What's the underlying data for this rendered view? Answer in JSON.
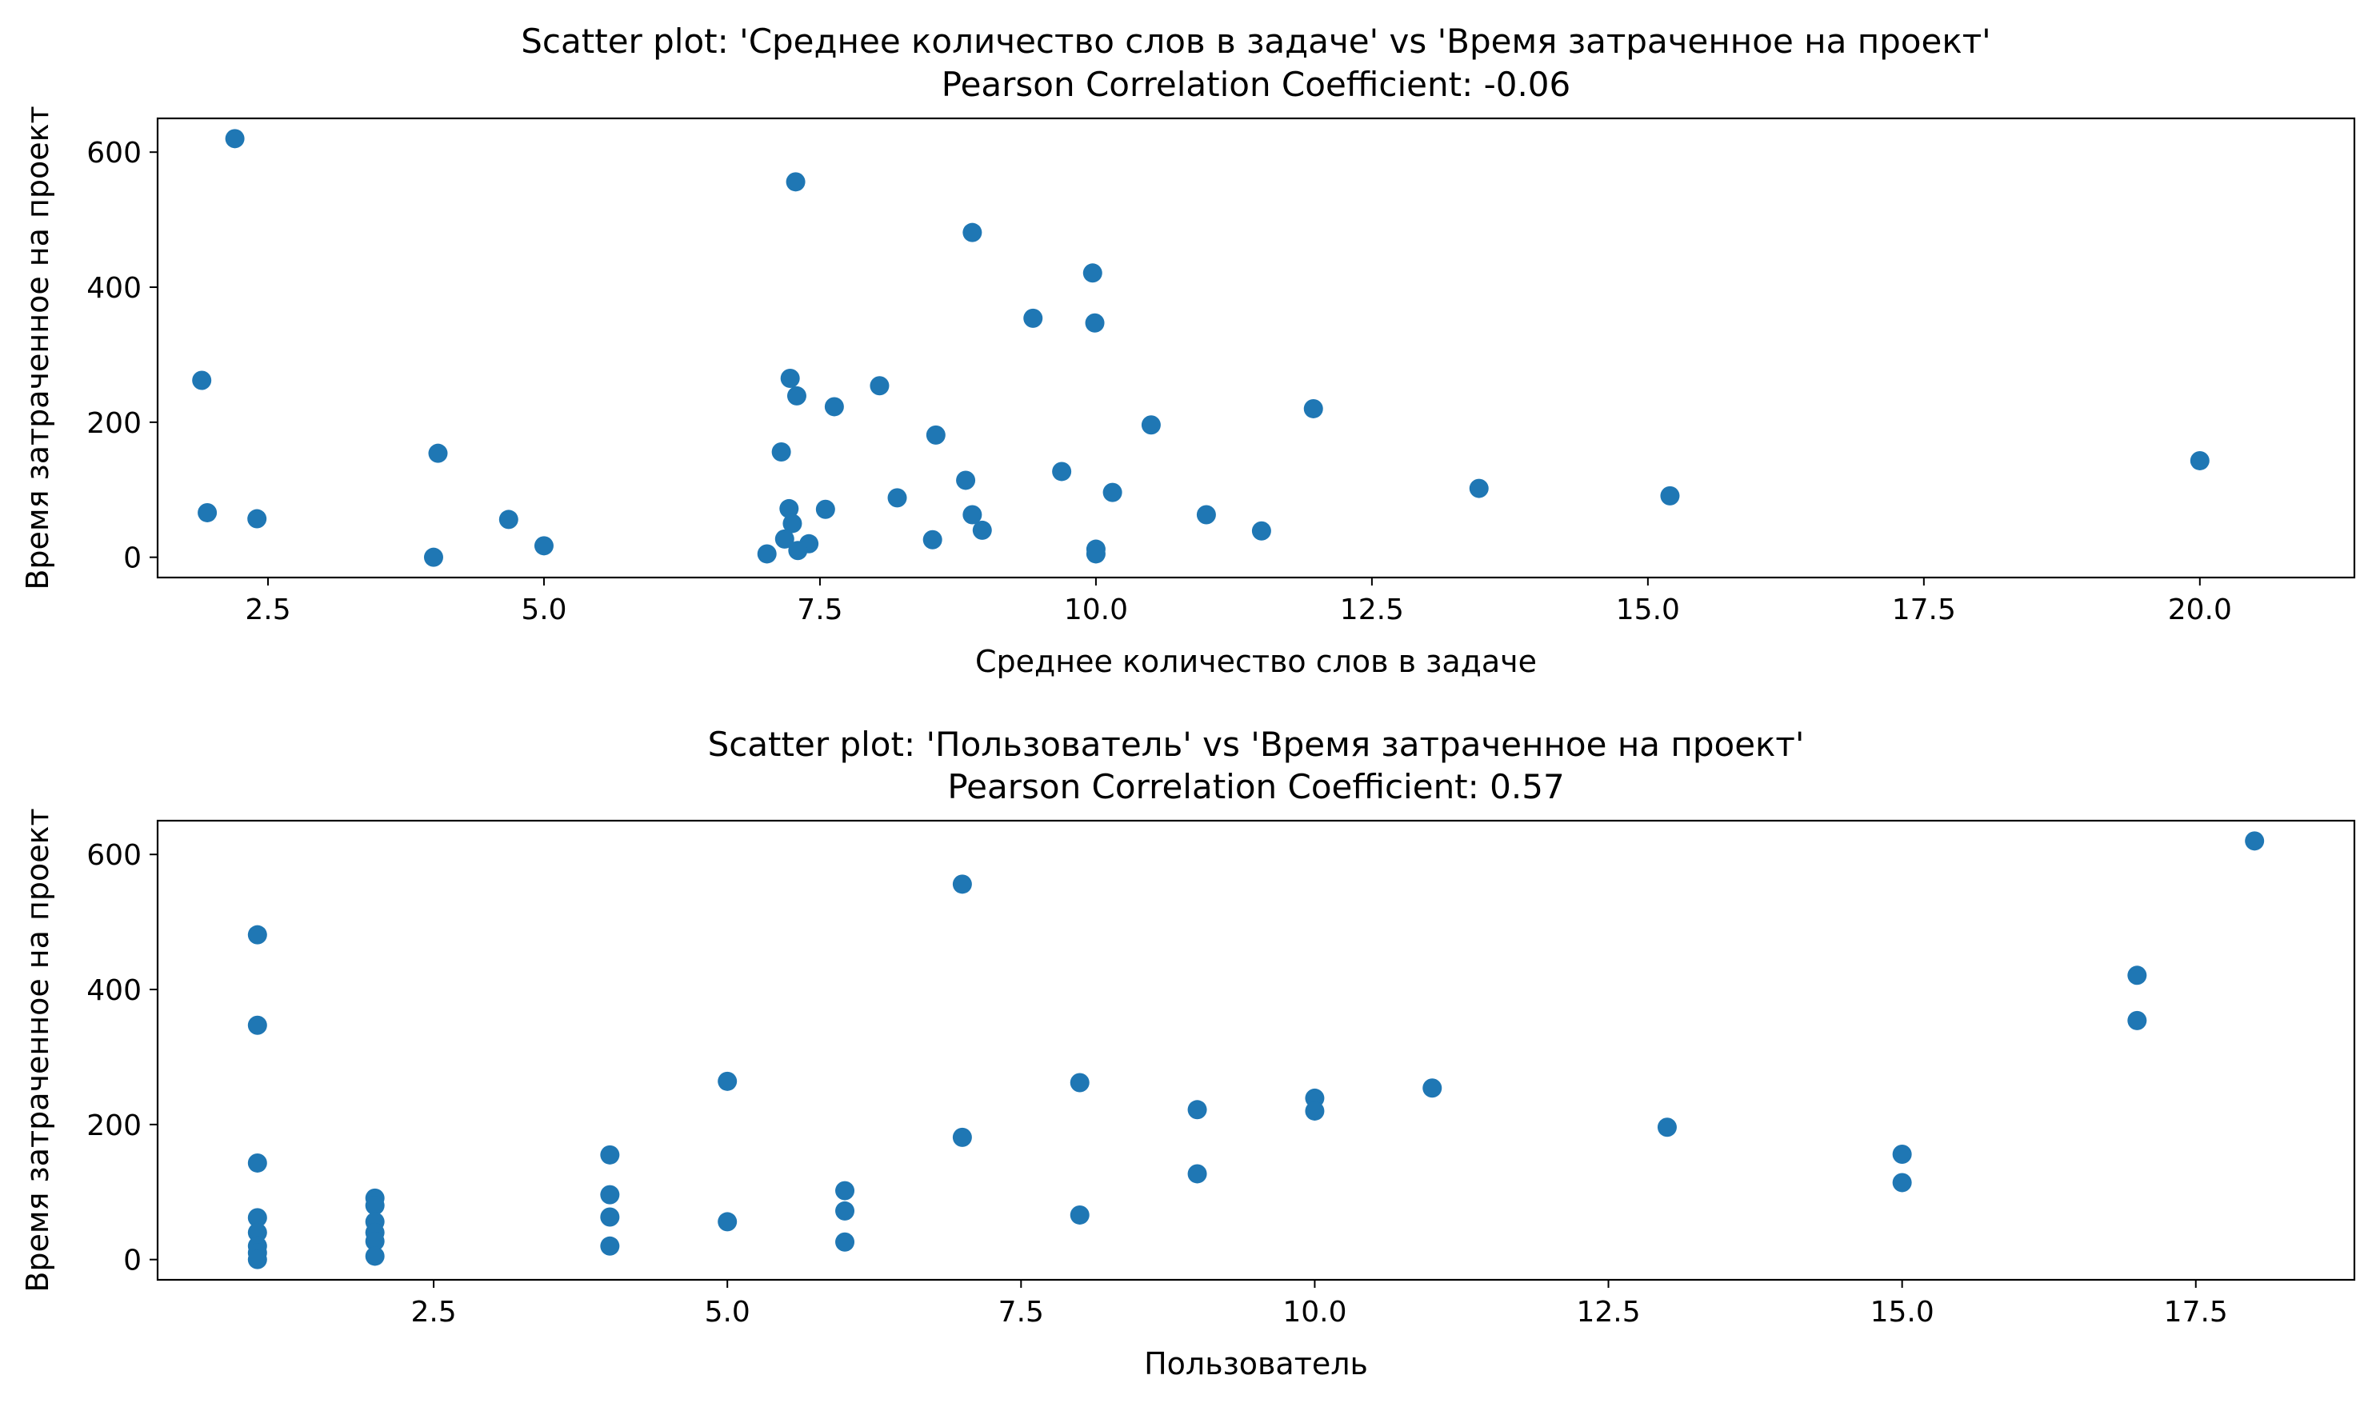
{
  "chart_data": [
    {
      "type": "scatter",
      "title": "Scatter plot: 'Среднее количество слов в задаче' vs 'Время затраченное на проект'",
      "subtitle": "Pearson Correlation Coefficient: -0.06",
      "xlabel": "Среднее количество слов в задаче",
      "ylabel": "Время затраченное на проект",
      "xlim": [
        1.5,
        21.4
      ],
      "ylim": [
        -30,
        650
      ],
      "xticks": [
        2.5,
        5.0,
        7.5,
        10.0,
        12.5,
        15.0,
        17.5,
        20.0
      ],
      "xtick_labels": [
        "2.5",
        "5.0",
        "7.5",
        "10.0",
        "12.5",
        "15.0",
        "17.5",
        "20.0"
      ],
      "yticks": [
        0,
        200,
        400,
        600
      ],
      "ytick_labels": [
        "0",
        "200",
        "400",
        "600"
      ],
      "grid": false,
      "color": "#1f77b4",
      "series": [
        {
          "x": [
            2.2,
            7.28,
            8.88,
            9.97,
            9.43,
            9.99,
            1.9,
            7.23,
            7.29,
            7.63,
            8.04,
            11.97,
            10.5,
            8.55,
            4.04,
            7.15,
            9.69,
            8.82,
            10.15,
            13.47,
            15.2,
            20.0,
            1.95,
            2.4,
            4.68,
            7.22,
            7.55,
            8.2,
            8.88,
            11.0,
            7.25,
            8.97,
            11.5,
            7.18,
            8.52,
            5.0,
            7.4,
            7.3,
            7.02,
            10.0,
            10.0,
            4.0
          ],
          "y": [
            620,
            556,
            481,
            421,
            354,
            347,
            262,
            265,
            239,
            223,
            254,
            220,
            196,
            181,
            154,
            156,
            127,
            114,
            96,
            102,
            91,
            143,
            66,
            57,
            56,
            72,
            71,
            88,
            63,
            63,
            50,
            40,
            39,
            27,
            26,
            17,
            20,
            10,
            5,
            12,
            5,
            0
          ]
        }
      ]
    },
    {
      "type": "scatter",
      "title": "Scatter plot: 'Пользователь' vs 'Время затраченное на проект'",
      "subtitle": "Pearson Correlation Coefficient: 0.57",
      "xlabel": "Пользователь",
      "ylabel": "Время затраченное на проект",
      "xlim": [
        0.15,
        18.85
      ],
      "ylim": [
        -30,
        650
      ],
      "xticks": [
        2.5,
        5.0,
        7.5,
        10.0,
        12.5,
        15.0,
        17.5
      ],
      "xtick_labels": [
        "2.5",
        "5.0",
        "7.5",
        "10.0",
        "12.5",
        "15.0",
        "17.5"
      ],
      "yticks": [
        0,
        200,
        400,
        600
      ],
      "ytick_labels": [
        "0",
        "200",
        "400",
        "600"
      ],
      "grid": false,
      "color": "#1f77b4",
      "series": [
        {
          "x": [
            1,
            1,
            1,
            1,
            1,
            1,
            1,
            1,
            2,
            2,
            2,
            2,
            2,
            2,
            4,
            4,
            4,
            4,
            5,
            5,
            6,
            6,
            6,
            7,
            7,
            8,
            8,
            9,
            9,
            10,
            10,
            11,
            13,
            15,
            15,
            17,
            17,
            18
          ],
          "y": [
            481,
            347,
            143,
            62,
            40,
            20,
            10,
            0,
            91,
            80,
            56,
            40,
            27,
            5,
            155,
            96,
            63,
            20,
            264,
            56,
            102,
            72,
            26,
            556,
            181,
            262,
            66,
            222,
            127,
            239,
            220,
            254,
            196,
            156,
            114,
            421,
            354,
            620
          ]
        }
      ]
    }
  ]
}
